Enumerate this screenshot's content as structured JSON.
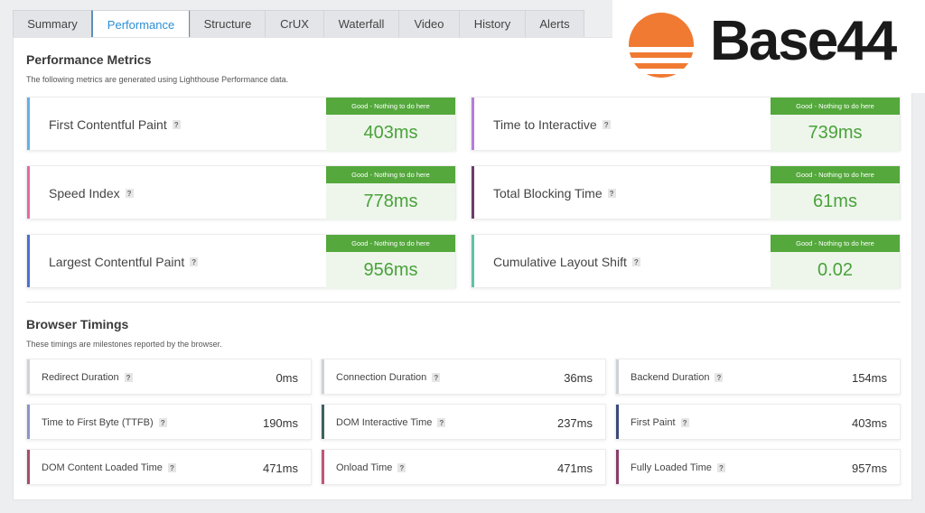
{
  "tabs": [
    {
      "label": "Summary",
      "active": false
    },
    {
      "label": "Performance",
      "active": true
    },
    {
      "label": "Structure",
      "active": false
    },
    {
      "label": "CrUX",
      "active": false
    },
    {
      "label": "Waterfall",
      "active": false
    },
    {
      "label": "Video",
      "active": false
    },
    {
      "label": "History",
      "active": false
    },
    {
      "label": "Alerts",
      "active": false
    }
  ],
  "logo": {
    "text": "Base44",
    "mark_color": "#f07a32"
  },
  "performance": {
    "title": "Performance Metrics",
    "description": "The following metrics are generated using Lighthouse Performance data.",
    "help": "?",
    "metrics": [
      {
        "name": "First Contentful Paint",
        "badge": "Good - Nothing to do here",
        "value": "403ms",
        "accent": "#62b0e8"
      },
      {
        "name": "Time to Interactive",
        "badge": "Good - Nothing to do here",
        "value": "739ms",
        "accent": "#b57ddb"
      },
      {
        "name": "Speed Index",
        "badge": "Good - Nothing to do here",
        "value": "778ms",
        "accent": "#e46aa6"
      },
      {
        "name": "Total Blocking Time",
        "badge": "Good - Nothing to do here",
        "value": "61ms",
        "accent": "#6a3d6a"
      },
      {
        "name": "Largest Contentful Paint",
        "badge": "Good - Nothing to do here",
        "value": "956ms",
        "accent": "#4d6fd1"
      },
      {
        "name": "Cumulative Layout Shift",
        "badge": "Good - Nothing to do here",
        "value": "0.02",
        "accent": "#5ec2a4"
      }
    ]
  },
  "browser": {
    "title": "Browser Timings",
    "description": "These timings are milestones reported by the browser.",
    "timings": [
      {
        "name": "Redirect Duration",
        "value": "0ms",
        "accent": "#cfd2d6"
      },
      {
        "name": "Connection Duration",
        "value": "36ms",
        "accent": "#cfd2d6"
      },
      {
        "name": "Backend Duration",
        "value": "154ms",
        "accent": "#cfd2d6"
      },
      {
        "name": "Time to First Byte (TTFB)",
        "value": "190ms",
        "accent": "#8a95c9"
      },
      {
        "name": "DOM Interactive Time",
        "value": "237ms",
        "accent": "#3f6160"
      },
      {
        "name": "First Paint",
        "value": "403ms",
        "accent": "#3c4a7a"
      },
      {
        "name": "DOM Content Loaded Time",
        "value": "471ms",
        "accent": "#a54d6a"
      },
      {
        "name": "Onload Time",
        "value": "471ms",
        "accent": "#c0557a"
      },
      {
        "name": "Fully Loaded Time",
        "value": "957ms",
        "accent": "#8a3d6a"
      }
    ]
  }
}
